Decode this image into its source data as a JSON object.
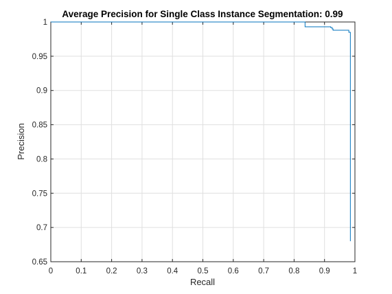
{
  "chart_data": {
    "type": "line",
    "title": "Average Precision for Single Class Instance Segmentation: 0.99",
    "xlabel": "Recall",
    "ylabel": "Precision",
    "xlim": [
      0,
      1
    ],
    "ylim": [
      0.65,
      1
    ],
    "xticks": [
      0,
      0.1,
      0.2,
      0.3,
      0.4,
      0.5,
      0.6,
      0.7,
      0.8,
      0.9,
      1
    ],
    "xtick_labels": [
      "0",
      "0.1",
      "0.2",
      "0.3",
      "0.4",
      "0.5",
      "0.6",
      "0.7",
      "0.8",
      "0.9",
      "1"
    ],
    "yticks": [
      0.65,
      0.7,
      0.75,
      0.8,
      0.85,
      0.9,
      0.95,
      1
    ],
    "ytick_labels": [
      "0.65",
      "0.7",
      "0.75",
      "0.8",
      "0.85",
      "0.9",
      "0.95",
      "1"
    ],
    "grid": true,
    "line_color": "#0072BD",
    "series": [
      {
        "x": [
          0,
          0.836,
          0.836,
          0.92,
          0.92,
          0.925,
          0.925,
          0.928,
          0.928,
          0.98,
          0.98,
          0.985,
          0.985,
          0.985
        ],
        "y": [
          1,
          1,
          0.993,
          0.993,
          0.992,
          0.992,
          0.99,
          0.99,
          0.988,
          0.988,
          0.985,
          0.985,
          0.982,
          0.68
        ]
      }
    ]
  }
}
